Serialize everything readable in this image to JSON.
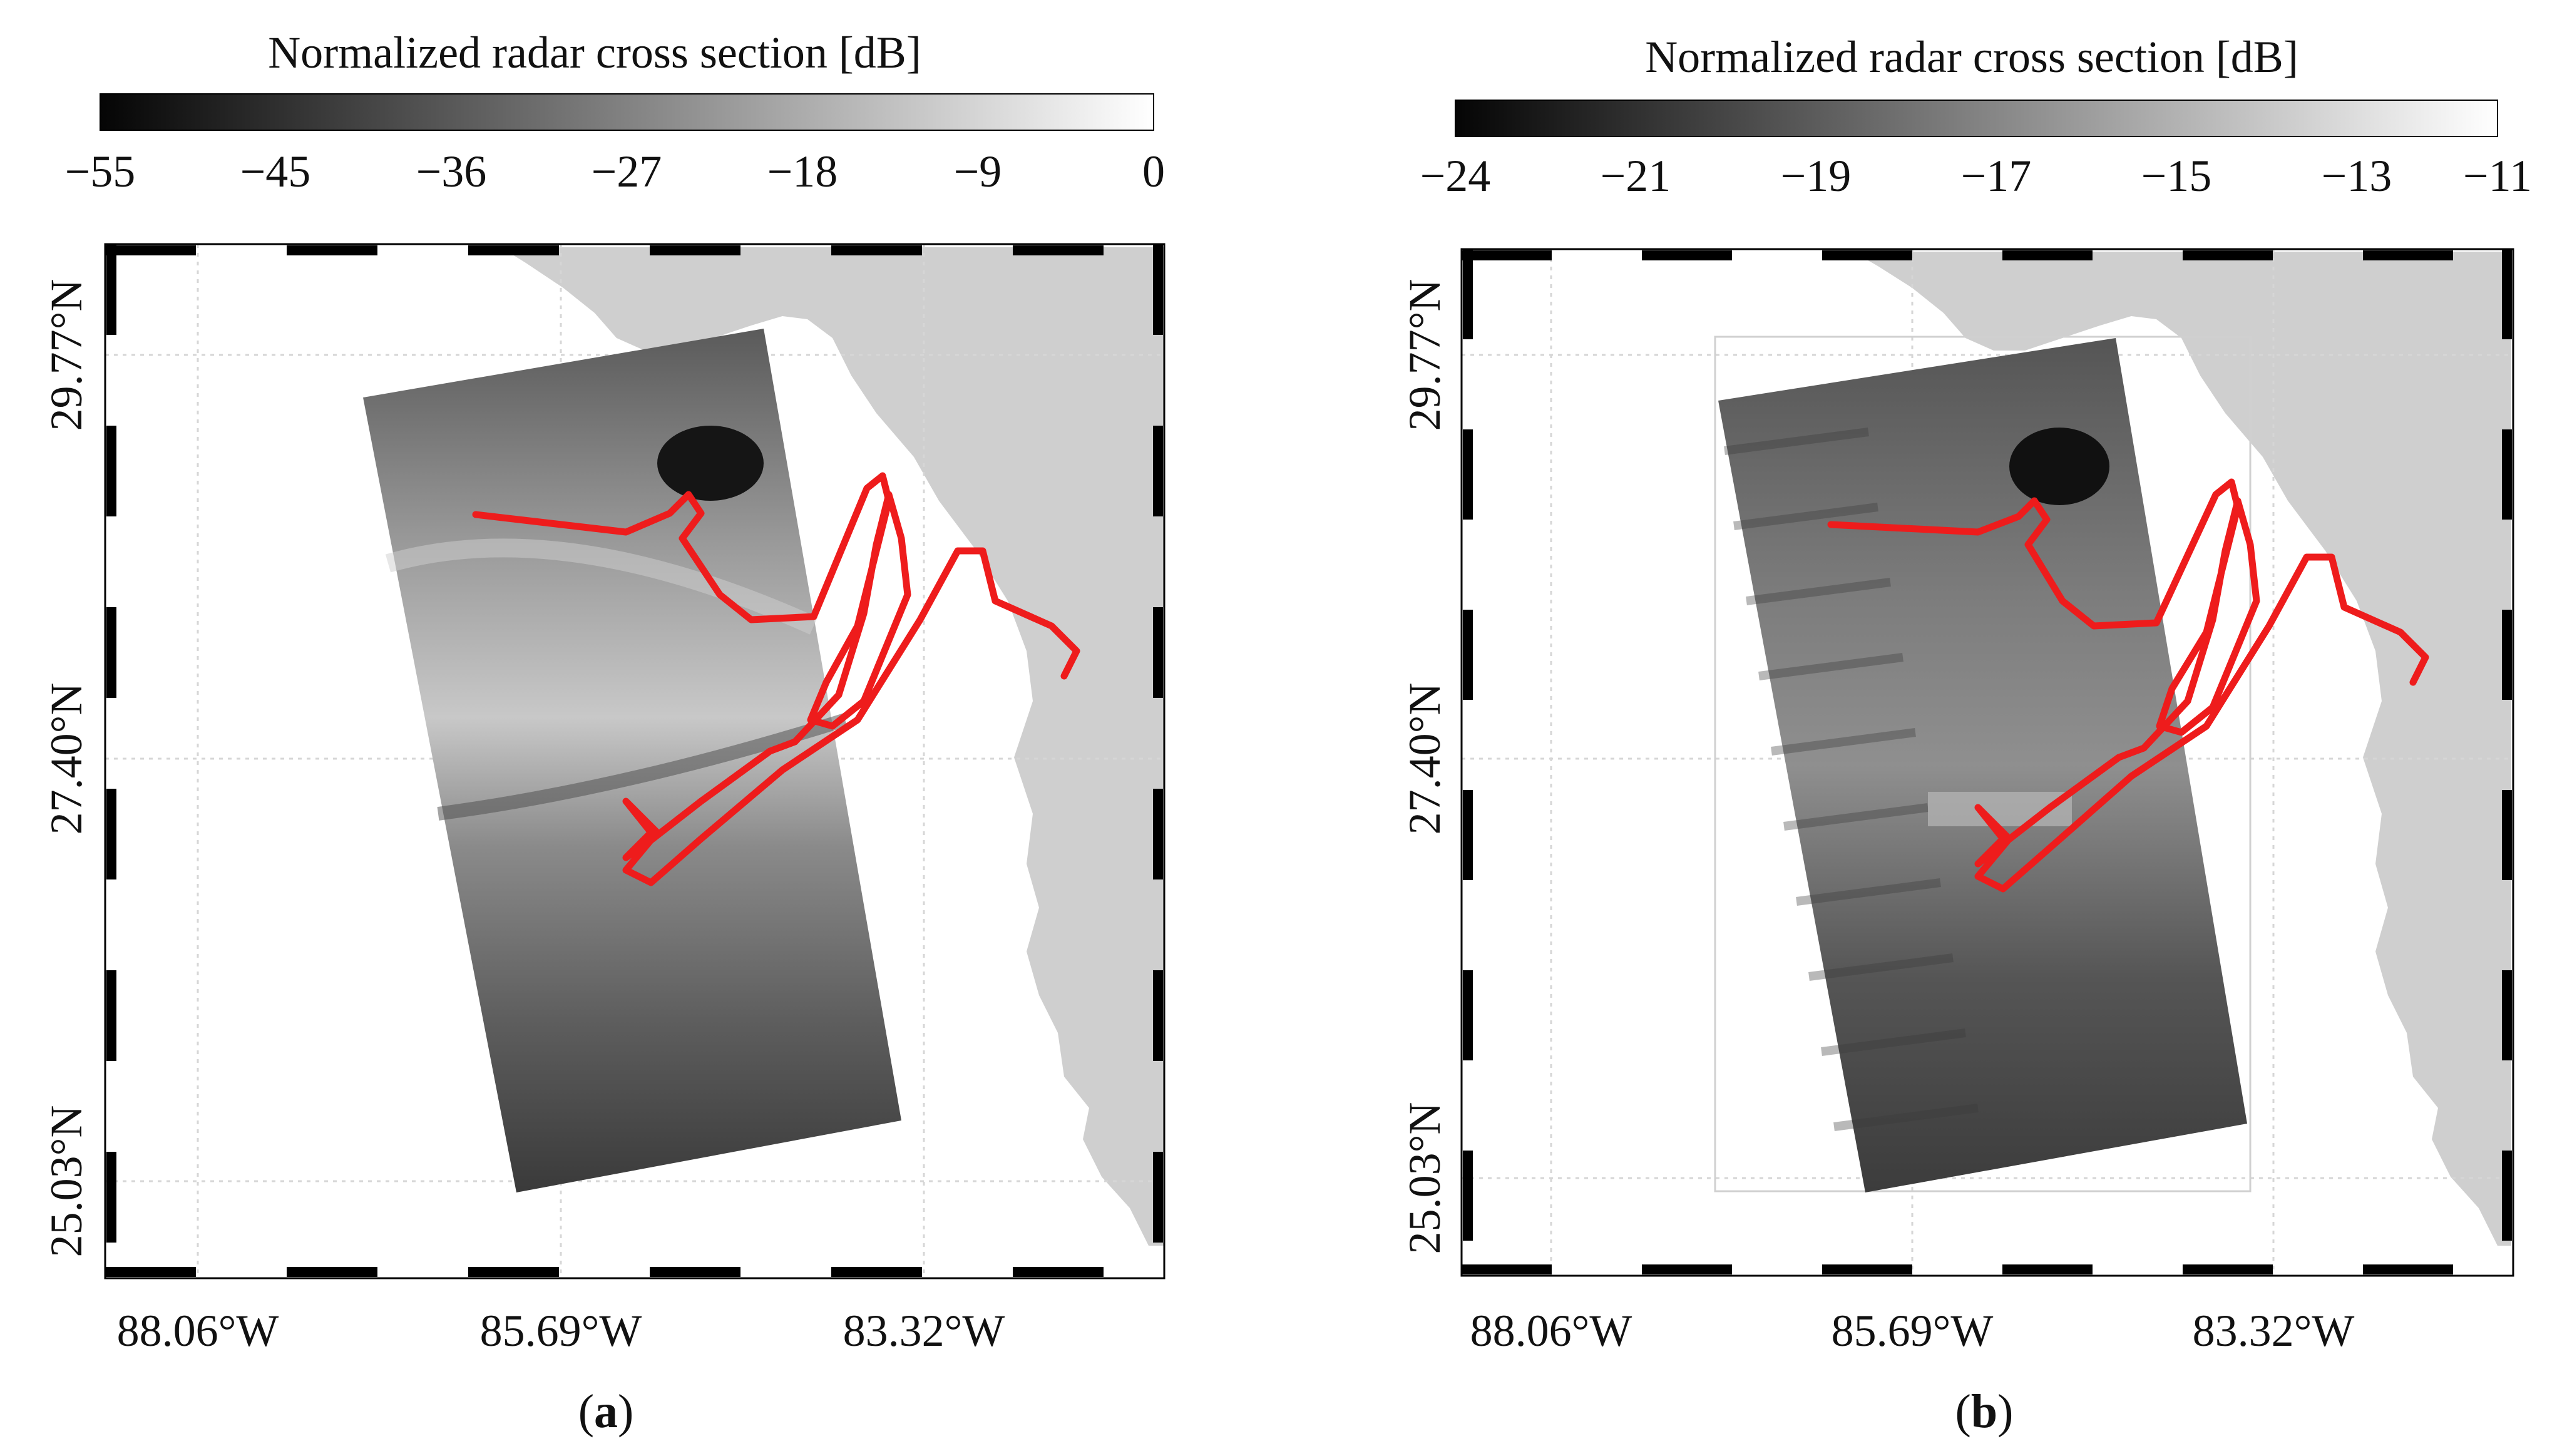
{
  "panels": [
    {
      "id": "a",
      "colorbar": {
        "title": "Normalized radar cross section [dB]",
        "ticks": [
          "−55",
          "−45",
          "−36",
          "−27",
          "−18",
          "−9",
          "0"
        ],
        "vmin": -55,
        "vmax": 0
      },
      "lat_labels": [
        "29.77°N",
        "27.40°N",
        "25.03°N"
      ],
      "lon_labels": [
        "88.06°W",
        "85.69°W",
        "83.32°W"
      ],
      "caption": {
        "open": "(",
        "letter": "a",
        "close": ")"
      },
      "track_color": "#ee1c1c"
    },
    {
      "id": "b",
      "colorbar": {
        "title": "Normalized radar cross section [dB]",
        "ticks": [
          "−24",
          "−21",
          "−19",
          "−17",
          "−15",
          "−13",
          "−11"
        ],
        "vmin": -24,
        "vmax": -11
      },
      "lat_labels": [
        "29.77°N",
        "27.40°N",
        "25.03°N"
      ],
      "lon_labels": [
        "88.06°W",
        "85.69°W",
        "83.32°W"
      ],
      "caption": {
        "open": "(",
        "letter": "b",
        "close": ")"
      },
      "track_color": "#ee1c1c"
    }
  ],
  "colors": {
    "land": "#cfcfcf",
    "frame": "#000000",
    "grid": "#d6d6d6"
  }
}
